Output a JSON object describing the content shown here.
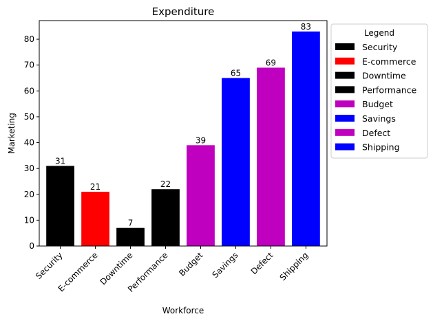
{
  "chart_data": {
    "type": "bar",
    "title": "Expenditure",
    "xlabel": "Workforce",
    "ylabel": "Marketing",
    "ylim": [
      0,
      87.2
    ],
    "yticks": [
      0,
      10,
      20,
      30,
      40,
      50,
      60,
      70,
      80
    ],
    "categories": [
      "Security",
      "E-commerce",
      "Downtime",
      "Performance",
      "Budget",
      "Savings",
      "Defect",
      "Shipping"
    ],
    "values": [
      31,
      21,
      7,
      22,
      39,
      65,
      69,
      83
    ],
    "colors": [
      "#000000",
      "#ff0000",
      "#000000",
      "#000000",
      "#bf00bf",
      "#0000ff",
      "#bf00bf",
      "#0000ff"
    ],
    "grid": false,
    "legend": {
      "title": "Legend",
      "placement": "outside-right-top",
      "entries": [
        "Security",
        "E-commerce",
        "Downtime",
        "Performance",
        "Budget",
        "Savings",
        "Defect",
        "Shipping"
      ]
    }
  }
}
